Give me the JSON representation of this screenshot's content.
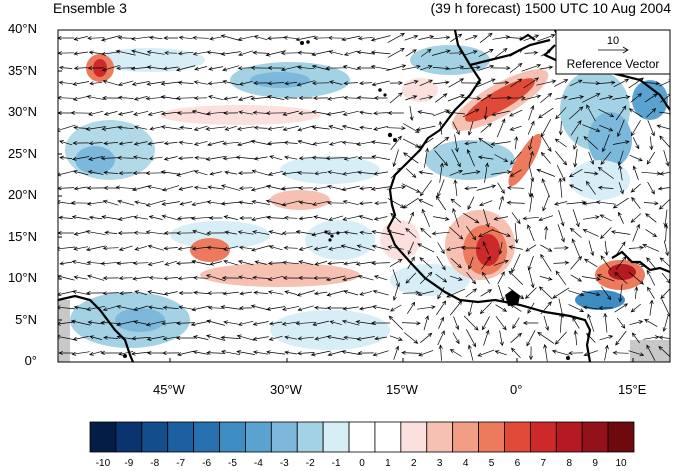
{
  "header": {
    "left": "Ensemble 3",
    "right": "(39 h forecast) 1500 UTC 10 Aug 2004"
  },
  "reference_vector": {
    "magnitude": "10",
    "label": "Reference Vector"
  },
  "latitude_labels": [
    "40°N",
    "35°N",
    "30°N",
    "25°N",
    "20°N",
    "15°N",
    "10°N",
    "5°N",
    "0°"
  ],
  "longitude_labels": [
    "45°W",
    "30°W",
    "15°W",
    "0°",
    "15°E"
  ],
  "colorbar": {
    "labels": [
      "-10",
      "-9",
      "-8",
      "-7",
      "-6",
      "-5",
      "-4",
      "-3",
      "-2",
      "-1",
      "0",
      "1",
      "2",
      "3",
      "4",
      "5",
      "6",
      "7",
      "8",
      "9",
      "10"
    ],
    "colors": [
      "#031d46",
      "#0a3470",
      "#134d8c",
      "#1c60a2",
      "#2771b0",
      "#3d8cc2",
      "#5aa3d0",
      "#7cb8dc",
      "#a3d2e4",
      "#d7eef6",
      "#ffffff",
      "#ffffff",
      "#fbe0dd",
      "#f6c0b3",
      "#f29d86",
      "#ec7b5e",
      "#e04a39",
      "#cc2a2a",
      "#b51a22",
      "#931119",
      "#6c0a0e"
    ]
  },
  "colors": {
    "land_outline": "#000000",
    "grid_gray": "#d0d0d0"
  }
}
